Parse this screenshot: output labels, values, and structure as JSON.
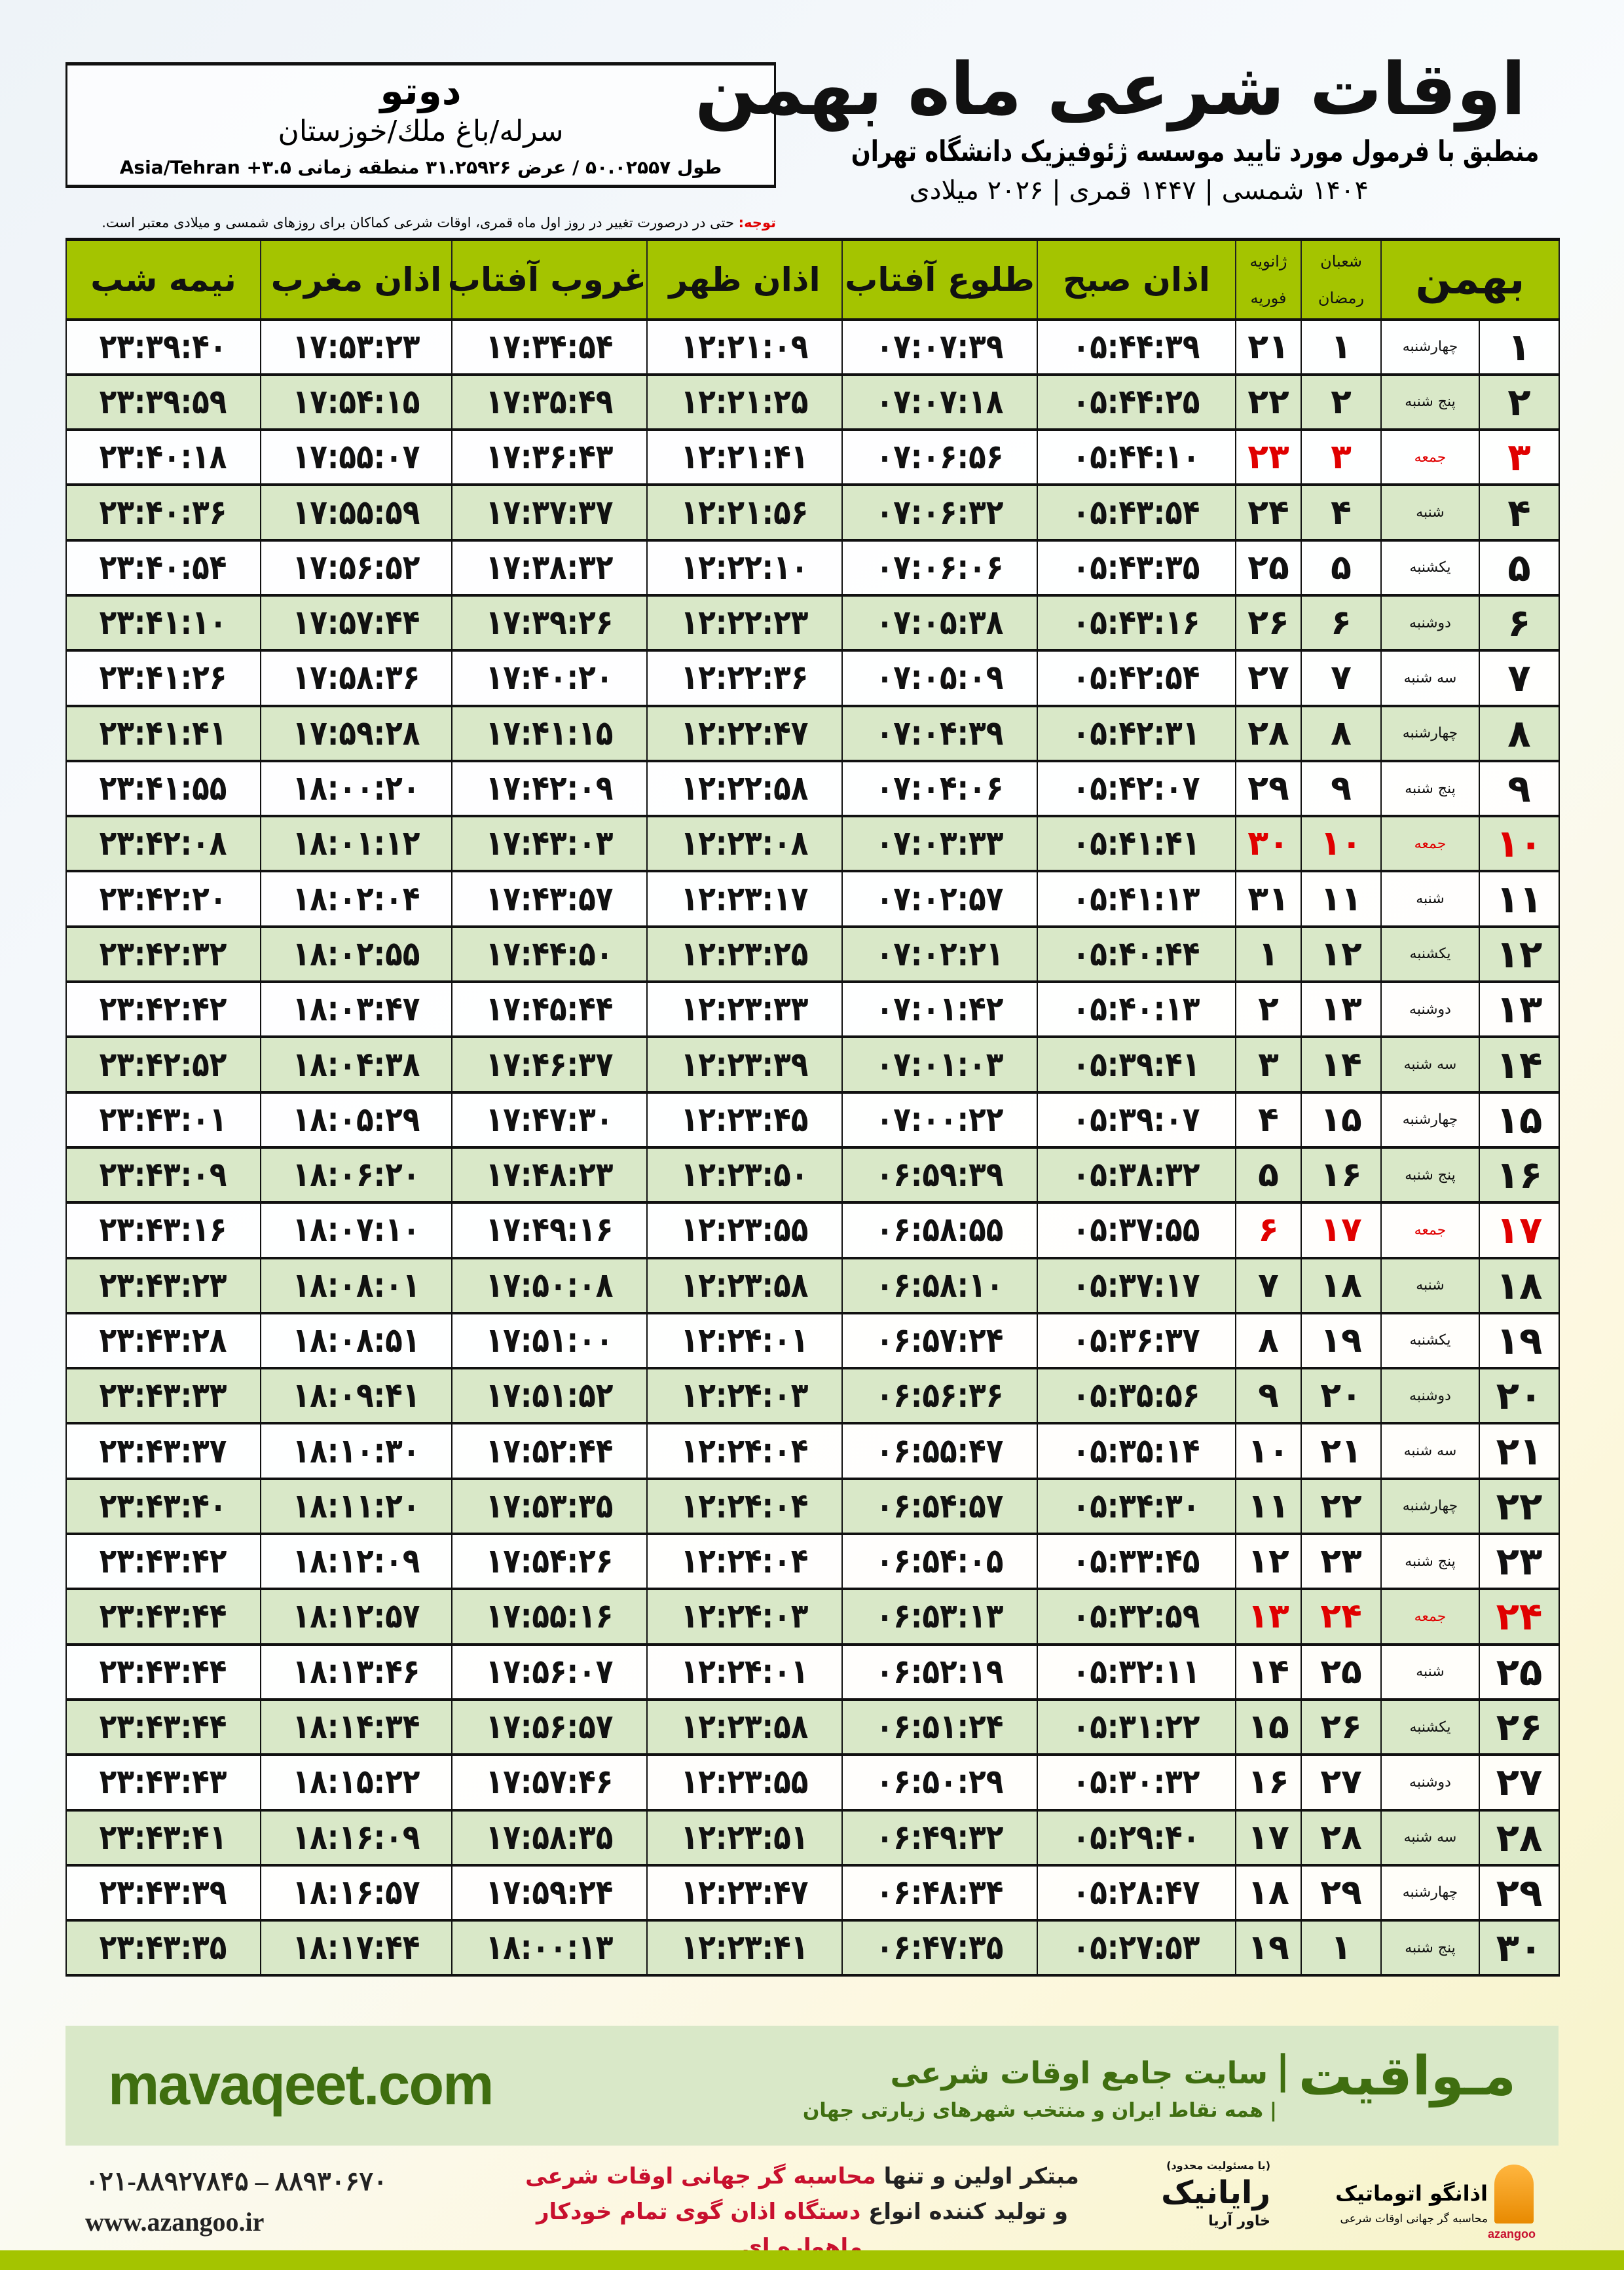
{
  "location": {
    "city": "دوتو",
    "path": "سرله/باغ ملك/خوزستان",
    "coords": "طول ۵۰.۰۲۵۵۷ / عرض ۳۱.۲۵۹۲۶ منطقه زمانی ۳.۵+ Asia/Tehran"
  },
  "header": {
    "title": "اوقات شرعی ماه بهمن",
    "subtitle": "منطبق با فرمول مورد تایید موسسه ژئوفیزیک دانشگاه تهران",
    "years": "۱۴۰۴ شمسی | ۱۴۴۷ قمری | ۲۰۲۶ میلادی"
  },
  "note": {
    "label": "توجه:",
    "text": " حتی در درصورت تغییر در روز اول ماه قمری، اوقات شرعی کماکان برای روزهای شمسی و میلادی معتبر است."
  },
  "columns": {
    "month": "بهمن",
    "lunar_top": "شعبان",
    "lunar_bottom": "رمضان",
    "greg_top": "ژانویه",
    "greg_bottom": "فوریه",
    "fajr": "اذان صبح",
    "sunrise": "طلوع آفتاب",
    "dhuhr": "اذان ظهر",
    "sunset": "غروب آفتاب",
    "maghrib": "اذان مغرب",
    "midnight": "نیمه شب"
  },
  "colors": {
    "header_green": "#a4c400",
    "row_green": "#d9e8c8",
    "friday_red": "#e00000",
    "brand_green": "#3f6e10"
  },
  "rows": [
    [
      "۱",
      "چهارشنبه",
      "۱",
      "۲۱",
      "۰۵:۴۴:۳۹",
      "۰۷:۰۷:۳۹",
      "۱۲:۲۱:۰۹",
      "۱۷:۳۴:۵۴",
      "۱۷:۵۳:۲۳",
      "۲۳:۳۹:۴۰"
    ],
    [
      "۲",
      "پنج شنبه",
      "۲",
      "۲۲",
      "۰۵:۴۴:۲۵",
      "۰۷:۰۷:۱۸",
      "۱۲:۲۱:۲۵",
      "۱۷:۳۵:۴۹",
      "۱۷:۵۴:۱۵",
      "۲۳:۳۹:۵۹"
    ],
    [
      "۳",
      "جمعه",
      "۳",
      "۲۳",
      "۰۵:۴۴:۱۰",
      "۰۷:۰۶:۵۶",
      "۱۲:۲۱:۴۱",
      "۱۷:۳۶:۴۳",
      "۱۷:۵۵:۰۷",
      "۲۳:۴۰:۱۸"
    ],
    [
      "۴",
      "شنبه",
      "۴",
      "۲۴",
      "۰۵:۴۳:۵۴",
      "۰۷:۰۶:۳۲",
      "۱۲:۲۱:۵۶",
      "۱۷:۳۷:۳۷",
      "۱۷:۵۵:۵۹",
      "۲۳:۴۰:۳۶"
    ],
    [
      "۵",
      "یکشنبه",
      "۵",
      "۲۵",
      "۰۵:۴۳:۳۵",
      "۰۷:۰۶:۰۶",
      "۱۲:۲۲:۱۰",
      "۱۷:۳۸:۳۲",
      "۱۷:۵۶:۵۲",
      "۲۳:۴۰:۵۴"
    ],
    [
      "۶",
      "دوشنبه",
      "۶",
      "۲۶",
      "۰۵:۴۳:۱۶",
      "۰۷:۰۵:۳۸",
      "۱۲:۲۲:۲۳",
      "۱۷:۳۹:۲۶",
      "۱۷:۵۷:۴۴",
      "۲۳:۴۱:۱۰"
    ],
    [
      "۷",
      "سه شنبه",
      "۷",
      "۲۷",
      "۰۵:۴۲:۵۴",
      "۰۷:۰۵:۰۹",
      "۱۲:۲۲:۳۶",
      "۱۷:۴۰:۲۰",
      "۱۷:۵۸:۳۶",
      "۲۳:۴۱:۲۶"
    ],
    [
      "۸",
      "چهارشنبه",
      "۸",
      "۲۸",
      "۰۵:۴۲:۳۱",
      "۰۷:۰۴:۳۹",
      "۱۲:۲۲:۴۷",
      "۱۷:۴۱:۱۵",
      "۱۷:۵۹:۲۸",
      "۲۳:۴۱:۴۱"
    ],
    [
      "۹",
      "پنج شنبه",
      "۹",
      "۲۹",
      "۰۵:۴۲:۰۷",
      "۰۷:۰۴:۰۶",
      "۱۲:۲۲:۵۸",
      "۱۷:۴۲:۰۹",
      "۱۸:۰۰:۲۰",
      "۲۳:۴۱:۵۵"
    ],
    [
      "۱۰",
      "جمعه",
      "۱۰",
      "۳۰",
      "۰۵:۴۱:۴۱",
      "۰۷:۰۳:۳۳",
      "۱۲:۲۳:۰۸",
      "۱۷:۴۳:۰۳",
      "۱۸:۰۱:۱۲",
      "۲۳:۴۲:۰۸"
    ],
    [
      "۱۱",
      "شنبه",
      "۱۱",
      "۳۱",
      "۰۵:۴۱:۱۳",
      "۰۷:۰۲:۵۷",
      "۱۲:۲۳:۱۷",
      "۱۷:۴۳:۵۷",
      "۱۸:۰۲:۰۴",
      "۲۳:۴۲:۲۰"
    ],
    [
      "۱۲",
      "یکشنبه",
      "۱۲",
      "۱",
      "۰۵:۴۰:۴۴",
      "۰۷:۰۲:۲۱",
      "۱۲:۲۳:۲۵",
      "۱۷:۴۴:۵۰",
      "۱۸:۰۲:۵۵",
      "۲۳:۴۲:۳۲"
    ],
    [
      "۱۳",
      "دوشنبه",
      "۱۳",
      "۲",
      "۰۵:۴۰:۱۳",
      "۰۷:۰۱:۴۲",
      "۱۲:۲۳:۳۳",
      "۱۷:۴۵:۴۴",
      "۱۸:۰۳:۴۷",
      "۲۳:۴۲:۴۲"
    ],
    [
      "۱۴",
      "سه شنبه",
      "۱۴",
      "۳",
      "۰۵:۳۹:۴۱",
      "۰۷:۰۱:۰۳",
      "۱۲:۲۳:۳۹",
      "۱۷:۴۶:۳۷",
      "۱۸:۰۴:۳۸",
      "۲۳:۴۲:۵۲"
    ],
    [
      "۱۵",
      "چهارشنبه",
      "۱۵",
      "۴",
      "۰۵:۳۹:۰۷",
      "۰۷:۰۰:۲۲",
      "۱۲:۲۳:۴۵",
      "۱۷:۴۷:۳۰",
      "۱۸:۰۵:۲۹",
      "۲۳:۴۳:۰۱"
    ],
    [
      "۱۶",
      "پنج شنبه",
      "۱۶",
      "۵",
      "۰۵:۳۸:۳۲",
      "۰۶:۵۹:۳۹",
      "۱۲:۲۳:۵۰",
      "۱۷:۴۸:۲۳",
      "۱۸:۰۶:۲۰",
      "۲۳:۴۳:۰۹"
    ],
    [
      "۱۷",
      "جمعه",
      "۱۷",
      "۶",
      "۰۵:۳۷:۵۵",
      "۰۶:۵۸:۵۵",
      "۱۲:۲۳:۵۵",
      "۱۷:۴۹:۱۶",
      "۱۸:۰۷:۱۰",
      "۲۳:۴۳:۱۶"
    ],
    [
      "۱۸",
      "شنبه",
      "۱۸",
      "۷",
      "۰۵:۳۷:۱۷",
      "۰۶:۵۸:۱۰",
      "۱۲:۲۳:۵۸",
      "۱۷:۵۰:۰۸",
      "۱۸:۰۸:۰۱",
      "۲۳:۴۳:۲۳"
    ],
    [
      "۱۹",
      "یکشنبه",
      "۱۹",
      "۸",
      "۰۵:۳۶:۳۷",
      "۰۶:۵۷:۲۴",
      "۱۲:۲۴:۰۱",
      "۱۷:۵۱:۰۰",
      "۱۸:۰۸:۵۱",
      "۲۳:۴۳:۲۸"
    ],
    [
      "۲۰",
      "دوشنبه",
      "۲۰",
      "۹",
      "۰۵:۳۵:۵۶",
      "۰۶:۵۶:۳۶",
      "۱۲:۲۴:۰۳",
      "۱۷:۵۱:۵۲",
      "۱۸:۰۹:۴۱",
      "۲۳:۴۳:۳۳"
    ],
    [
      "۲۱",
      "سه شنبه",
      "۲۱",
      "۱۰",
      "۰۵:۳۵:۱۴",
      "۰۶:۵۵:۴۷",
      "۱۲:۲۴:۰۴",
      "۱۷:۵۲:۴۴",
      "۱۸:۱۰:۳۰",
      "۲۳:۴۳:۳۷"
    ],
    [
      "۲۲",
      "چهارشنبه",
      "۲۲",
      "۱۱",
      "۰۵:۳۴:۳۰",
      "۰۶:۵۴:۵۷",
      "۱۲:۲۴:۰۴",
      "۱۷:۵۳:۳۵",
      "۱۸:۱۱:۲۰",
      "۲۳:۴۳:۴۰"
    ],
    [
      "۲۳",
      "پنج شنبه",
      "۲۳",
      "۱۲",
      "۰۵:۳۳:۴۵",
      "۰۶:۵۴:۰۵",
      "۱۲:۲۴:۰۴",
      "۱۷:۵۴:۲۶",
      "۱۸:۱۲:۰۹",
      "۲۳:۴۳:۴۲"
    ],
    [
      "۲۴",
      "جمعه",
      "۲۴",
      "۱۳",
      "۰۵:۳۲:۵۹",
      "۰۶:۵۳:۱۳",
      "۱۲:۲۴:۰۳",
      "۱۷:۵۵:۱۶",
      "۱۸:۱۲:۵۷",
      "۲۳:۴۳:۴۴"
    ],
    [
      "۲۵",
      "شنبه",
      "۲۵",
      "۱۴",
      "۰۵:۳۲:۱۱",
      "۰۶:۵۲:۱۹",
      "۱۲:۲۴:۰۱",
      "۱۷:۵۶:۰۷",
      "۱۸:۱۳:۴۶",
      "۲۳:۴۳:۴۴"
    ],
    [
      "۲۶",
      "یکشنبه",
      "۲۶",
      "۱۵",
      "۰۵:۳۱:۲۲",
      "۰۶:۵۱:۲۴",
      "۱۲:۲۳:۵۸",
      "۱۷:۵۶:۵۷",
      "۱۸:۱۴:۳۴",
      "۲۳:۴۳:۴۴"
    ],
    [
      "۲۷",
      "دوشنبه",
      "۲۷",
      "۱۶",
      "۰۵:۳۰:۳۲",
      "۰۶:۵۰:۲۹",
      "۱۲:۲۳:۵۵",
      "۱۷:۵۷:۴۶",
      "۱۸:۱۵:۲۲",
      "۲۳:۴۳:۴۳"
    ],
    [
      "۲۸",
      "سه شنبه",
      "۲۸",
      "۱۷",
      "۰۵:۲۹:۴۰",
      "۰۶:۴۹:۳۲",
      "۱۲:۲۳:۵۱",
      "۱۷:۵۸:۳۵",
      "۱۸:۱۶:۰۹",
      "۲۳:۴۳:۴۱"
    ],
    [
      "۲۹",
      "چهارشنبه",
      "۲۹",
      "۱۸",
      "۰۵:۲۸:۴۷",
      "۰۶:۴۸:۳۴",
      "۱۲:۲۳:۴۷",
      "۱۷:۵۹:۲۴",
      "۱۸:۱۶:۵۷",
      "۲۳:۴۳:۳۹"
    ],
    [
      "۳۰",
      "پنج شنبه",
      "۱",
      "۱۹",
      "۰۵:۲۷:۵۳",
      "۰۶:۴۷:۳۵",
      "۱۲:۲۳:۴۱",
      "۱۸:۰۰:۱۳",
      "۱۸:۱۷:۴۴",
      "۲۳:۴۳:۳۵"
    ]
  ],
  "friday_label": "جمعه",
  "footer": {
    "site": "mavaqeet.com",
    "brand": "مـواقیت",
    "separator": "|",
    "tagline": "سایت جامع اوقات شرعی",
    "sub": "همه نقاط ایران و منتخب شهرهای زیارتی جهان",
    "phone": "۰۲۱-۸۸۹۲۷۸۴۵ – ۸۸۹۳۰۶۷۰",
    "web": "www.azangoo.ir",
    "promo1a": "مبتکر اولین و تنها ",
    "promo1b": "محاسبه گر جهانی اوقات شرعی",
    "promo2a": "و تولید کننده انواع ",
    "promo2b": "دستگاه اذان گوی تمام خودکار ماهواره ای",
    "logo_raianik": "رایانیک",
    "logo_raianik_sub": "(با مسئولیت محدود)",
    "logo_raianik_side": "خاور آریا",
    "logo_azangoo": "اذانگو اتوماتیک",
    "logo_azangoo_sub": "محاسبه گر جهانی اوقات شرعی",
    "logo_azangoo_en": "azangoo"
  }
}
